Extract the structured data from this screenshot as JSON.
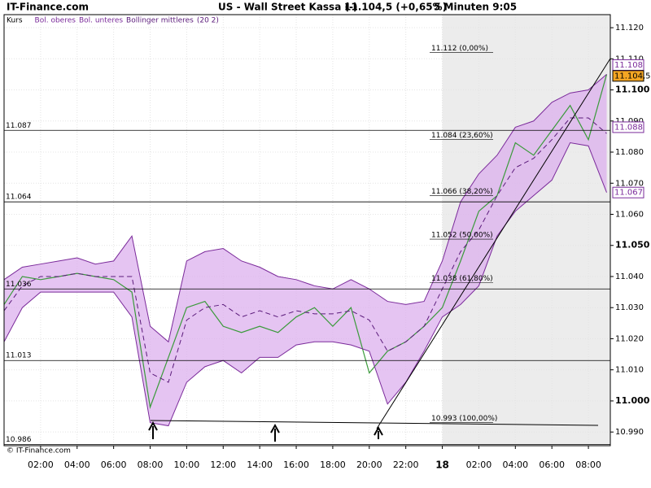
{
  "chart_data": {
    "type": "line",
    "site": "IT-Finance.com",
    "copyright": "© IT-Finance.com",
    "title": "US - Wall Street Kassa (-)",
    "quote": "11.104,5 (+0,65%)",
    "interval": "5 Minuten  9:05",
    "legend_note": "(20 2)",
    "x": [
      0,
      1,
      2,
      3,
      4,
      5,
      6,
      7,
      8,
      9,
      10,
      11,
      12,
      13,
      14,
      15,
      16,
      17,
      18,
      19,
      20,
      21,
      22,
      23,
      24,
      25,
      26,
      27,
      28,
      29,
      30,
      31,
      32,
      33
    ],
    "series": [
      {
        "name": "Kurs",
        "color": "#3a9a3a",
        "values": [
          11.031,
          11.04,
          11.039,
          11.04,
          11.041,
          11.04,
          11.039,
          11.035,
          10.998,
          11.014,
          11.03,
          11.032,
          11.024,
          11.022,
          11.024,
          11.022,
          11.027,
          11.03,
          11.024,
          11.03,
          11.009,
          11.016,
          11.019,
          11.024,
          11.03,
          11.045,
          11.061,
          11.066,
          11.083,
          11.079,
          11.087,
          11.095,
          11.084,
          11.105
        ]
      },
      {
        "name": "Bol. oberes",
        "color": "#7a2a9a",
        "values": [
          11.039,
          11.043,
          11.044,
          11.045,
          11.046,
          11.044,
          11.045,
          11.053,
          11.024,
          11.019,
          11.045,
          11.048,
          11.049,
          11.045,
          11.043,
          11.04,
          11.039,
          11.037,
          11.036,
          11.039,
          11.036,
          11.032,
          11.031,
          11.032,
          11.045,
          11.064,
          11.073,
          11.079,
          11.088,
          11.09,
          11.096,
          11.099,
          11.1,
          11.105
        ]
      },
      {
        "name": "Bol. unteres",
        "color": "#7a2a9a",
        "values": [
          11.019,
          11.03,
          11.035,
          11.035,
          11.035,
          11.035,
          11.035,
          11.027,
          10.993,
          10.992,
          11.006,
          11.011,
          11.013,
          11.009,
          11.014,
          11.014,
          11.018,
          11.019,
          11.019,
          11.018,
          11.016,
          10.999,
          11.006,
          11.016,
          11.027,
          11.031,
          11.037,
          11.053,
          11.061,
          11.066,
          11.071,
          11.083,
          11.082,
          11.067
        ]
      },
      {
        "name": "Bollinger mittleres",
        "color": "#5a1a7a",
        "values": [
          11.029,
          11.037,
          11.04,
          11.04,
          11.041,
          11.04,
          11.04,
          11.04,
          11.009,
          11.006,
          11.026,
          11.03,
          11.031,
          11.027,
          11.029,
          11.027,
          11.029,
          11.028,
          11.028,
          11.029,
          11.026,
          11.016,
          11.019,
          11.024,
          11.036,
          11.048,
          11.055,
          11.066,
          11.075,
          11.078,
          11.084,
          11.091,
          11.091,
          11.086
        ]
      }
    ],
    "band_color": "#dcb0ee",
    "shade_from": 24,
    "xlim": [
      0,
      33.2
    ],
    "xticks": [
      {
        "value": 2,
        "label": "02:00"
      },
      {
        "value": 4,
        "label": "04:00"
      },
      {
        "value": 6,
        "label": "06:00"
      },
      {
        "value": 8,
        "label": "08:00"
      },
      {
        "value": 10,
        "label": "10:00"
      },
      {
        "value": 12,
        "label": "12:00"
      },
      {
        "value": 14,
        "label": "14:00"
      },
      {
        "value": 16,
        "label": "16:00"
      },
      {
        "value": 18,
        "label": "18:00"
      },
      {
        "value": 20,
        "label": "20:00"
      },
      {
        "value": 22,
        "label": "22:00"
      },
      {
        "value": 24,
        "label": "18"
      },
      {
        "value": 26,
        "label": "02:00"
      },
      {
        "value": 28,
        "label": "04:00"
      },
      {
        "value": 30,
        "label": "06:00"
      },
      {
        "value": 32,
        "label": "08:00"
      }
    ],
    "ylim": [
      10.9856,
      11.1242
    ],
    "yticks": [
      {
        "value": 10.99,
        "label": "10.990"
      },
      {
        "value": 11.0,
        "label": "11.000"
      },
      {
        "value": 11.01,
        "label": "11.010"
      },
      {
        "value": 11.02,
        "label": "11.020"
      },
      {
        "value": 11.03,
        "label": "11.030"
      },
      {
        "value": 11.04,
        "label": "11.040"
      },
      {
        "value": 11.05,
        "label": "11.050"
      },
      {
        "value": 11.06,
        "label": "11.060"
      },
      {
        "value": 11.07,
        "label": "11.070"
      },
      {
        "value": 11.08,
        "label": "11.080"
      },
      {
        "value": 11.09,
        "label": "11.090"
      },
      {
        "value": 11.1,
        "label": "11.100"
      },
      {
        "value": 11.11,
        "label": "11.110"
      },
      {
        "value": 11.12,
        "label": "11.120"
      }
    ],
    "grid": true,
    "levels": [
      11.087,
      11.064,
      11.036,
      11.013,
      10.986
    ],
    "fib_levels": [
      {
        "value": 11.112,
        "label": "11.112 (0,00%)"
      },
      {
        "value": 11.084,
        "label": "11.084 (23,60%)"
      },
      {
        "value": 11.066,
        "label": "11.066 (38,20%)"
      },
      {
        "value": 11.052,
        "label": "11.052 (50,00%)"
      },
      {
        "value": 11.038,
        "label": "11.038 (61,80%)"
      },
      {
        "value": 10.993,
        "label": "10.993 (100,00%)"
      }
    ],
    "price_markers": [
      {
        "value": 11.108,
        "label": "11.108",
        "color": "#7a2a9a",
        "bg": "#ffffff"
      },
      {
        "value": 11.1045,
        "label": "11.104,5",
        "color": "#000000",
        "bg": "#f5a623"
      },
      {
        "value": 11.088,
        "label": "11.088",
        "color": "#7a2a9a",
        "bg": "#ffffff"
      },
      {
        "value": 11.067,
        "label": "11.067",
        "color": "#7a2a9a",
        "bg": "#ffffff"
      }
    ]
  }
}
